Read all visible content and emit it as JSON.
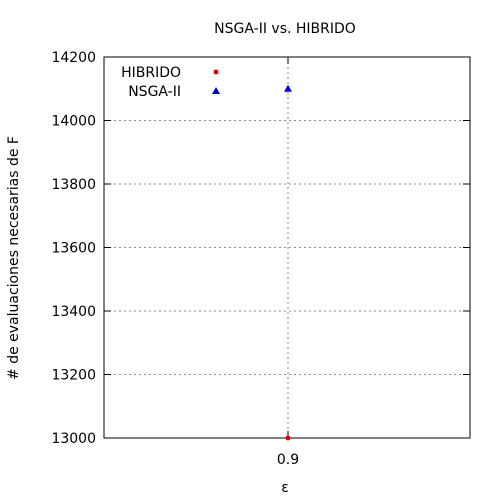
{
  "chart_data": {
    "type": "scatter",
    "title": "NSGA-II vs. HIBRIDO",
    "xlabel": "ε",
    "ylabel": "# de evaluaciones necesarias de F",
    "x_ticks": [
      "0.9"
    ],
    "y_ticks": [
      13000,
      13200,
      13400,
      13600,
      13800,
      14000,
      14200
    ],
    "ylim": [
      13000,
      14200
    ],
    "grid": true,
    "legend_position": "top-left",
    "series": [
      {
        "name": "HIBRIDO",
        "marker": "circle",
        "color": "#e00000",
        "points": [
          {
            "x": 0.9,
            "y": 13000
          }
        ]
      },
      {
        "name": "NSGA-II",
        "marker": "triangle",
        "color": "#0000d0",
        "points": [
          {
            "x": 0.9,
            "y": 14100
          }
        ]
      }
    ]
  }
}
